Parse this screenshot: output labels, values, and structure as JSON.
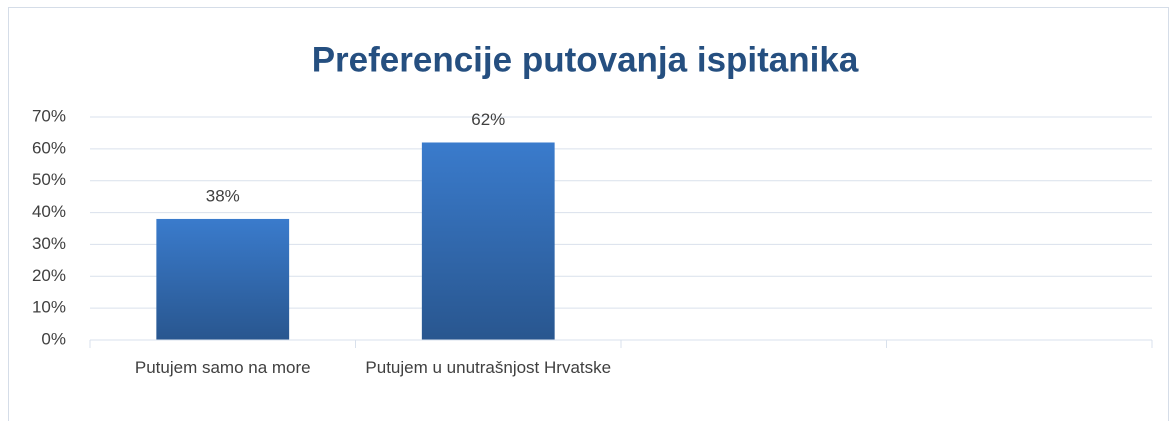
{
  "chart_data": {
    "type": "bar",
    "title": "Preferencije putovanja ispitanika",
    "categories": [
      "Putujem samo na more",
      "Putujem u unutrašnjost Hrvatske",
      null,
      null
    ],
    "values": [
      38,
      62,
      null,
      null
    ],
    "value_labels": [
      "38%",
      "62%",
      null,
      null
    ],
    "color": "#3a7bcc",
    "ylim": [
      0,
      70
    ],
    "yticks": [
      {
        "value": 0,
        "label": "0%"
      },
      {
        "value": 10,
        "label": "10%"
      },
      {
        "value": 20,
        "label": "20%"
      },
      {
        "value": 30,
        "label": "30%"
      },
      {
        "value": 40,
        "label": "40%"
      },
      {
        "value": 50,
        "label": "50%"
      },
      {
        "value": 60,
        "label": "60%"
      },
      {
        "value": 70,
        "label": "70%"
      }
    ],
    "grid": true
  }
}
